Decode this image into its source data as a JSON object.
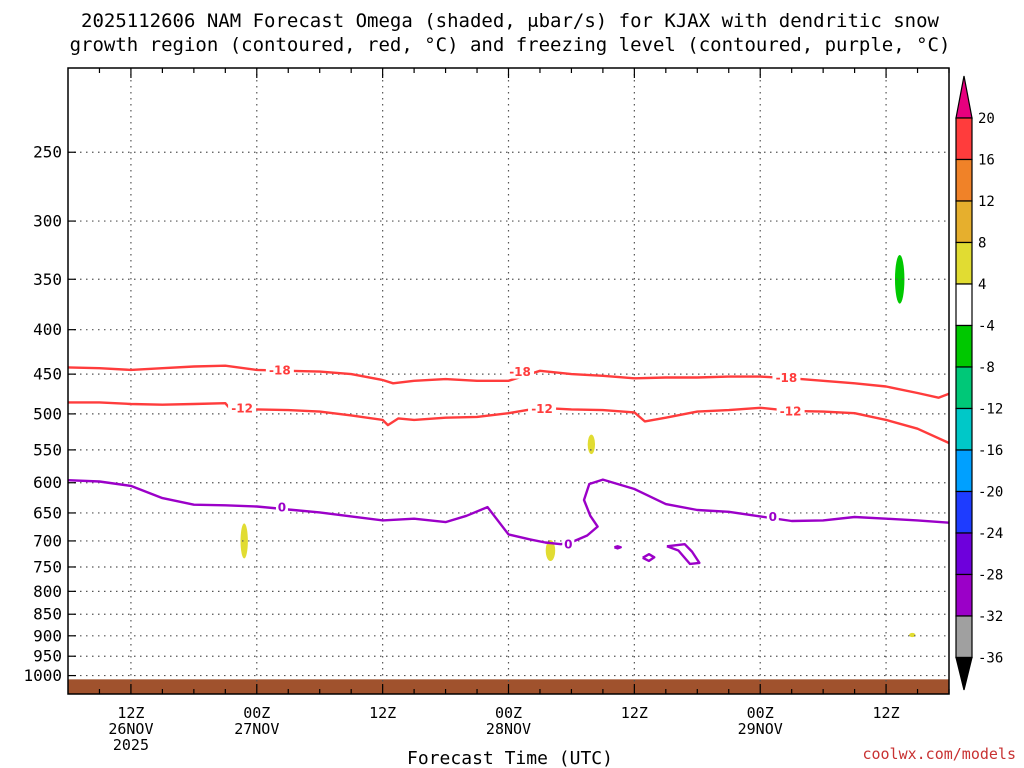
{
  "chart_data": {
    "type": "line",
    "title_lines": [
      "2025112606 NAM Forecast Omega (shaded, μbar/s) for KJAX with dendritic snow",
      "growth region (contoured, red, °C) and freezing level (contoured, purple, °C)"
    ],
    "xlabel": "Forecast Time (UTC)",
    "ylabel": "",
    "credit": "coolwx.com/models",
    "xlim": [
      6,
      90
    ],
    "ylim": [
      1050,
      200
    ],
    "y_ticks": [
      250,
      300,
      350,
      400,
      450,
      500,
      550,
      600,
      650,
      700,
      750,
      800,
      850,
      900,
      950,
      1000
    ],
    "x_ticks": [
      {
        "hour": 12,
        "lines": [
          "12Z",
          "26NOV",
          "2025"
        ]
      },
      {
        "hour": 24,
        "lines": [
          "00Z",
          "27NOV"
        ]
      },
      {
        "hour": 36,
        "lines": [
          "12Z"
        ]
      },
      {
        "hour": 48,
        "lines": [
          "00Z",
          "28NOV"
        ]
      },
      {
        "hour": 60,
        "lines": [
          "12Z"
        ]
      },
      {
        "hour": 72,
        "lines": [
          "00Z",
          "29NOV"
        ]
      },
      {
        "hour": 84,
        "lines": [
          "12Z"
        ]
      }
    ],
    "series": [
      {
        "name": "-18",
        "color": "#ff3c3c",
        "x": [
          6,
          9,
          12,
          15,
          18,
          21,
          24,
          27,
          30,
          33,
          36,
          37,
          39,
          42,
          45,
          48,
          51,
          54,
          57,
          60,
          63,
          66,
          69,
          72,
          75,
          78,
          81,
          84,
          87,
          89,
          90
        ],
        "y": [
          442,
          443,
          445,
          443,
          441,
          440,
          445,
          446,
          447,
          450,
          457,
          461,
          458,
          456,
          458,
          458,
          446,
          450,
          452,
          455,
          454,
          454,
          453,
          453,
          455,
          458,
          461,
          465,
          473,
          479,
          474
        ]
      },
      {
        "name": "-12",
        "color": "#ff3c3c",
        "x": [
          6,
          9,
          12,
          15,
          18,
          21,
          21.5,
          24,
          27,
          30,
          33,
          36,
          36.5,
          37.5,
          39,
          42,
          45,
          48,
          51,
          54,
          57,
          60,
          61,
          63,
          66,
          69,
          72,
          75,
          78,
          81,
          84,
          87,
          90
        ],
        "y": [
          485,
          485,
          487,
          488,
          487,
          486,
          494,
          494,
          495,
          497,
          502,
          508,
          515,
          506,
          508,
          505,
          504,
          499,
          492,
          494,
          495,
          498,
          510,
          505,
          497,
          495,
          492,
          496,
          497,
          499,
          508,
          520,
          540
        ]
      },
      {
        "name": "0",
        "color": "#9b00c8",
        "x": [
          6,
          9,
          12,
          15,
          18,
          21,
          24,
          27,
          30,
          33,
          36,
          39,
          42,
          44,
          46,
          48,
          50,
          51.5,
          53,
          54.3,
          55.5,
          56.5,
          55.8,
          55.2,
          55.7,
          57,
          60,
          63,
          66,
          69,
          72,
          75,
          78,
          81,
          84,
          87,
          90
        ],
        "y": [
          596,
          598,
          605,
          625,
          636,
          637,
          639,
          644,
          649,
          656,
          663,
          660,
          666,
          655,
          640,
          688,
          697,
          703,
          706,
          700,
          690,
          674,
          655,
          628,
          602,
          595,
          610,
          635,
          645,
          648,
          656,
          664,
          663,
          657,
          660,
          663,
          667
        ]
      }
    ],
    "closed_contours": [
      {
        "name": "0",
        "color": "#9b00c8",
        "x": [
          58.1,
          58.4,
          58.7,
          58.4,
          58.1
        ],
        "y": [
          712,
          710,
          712,
          714,
          712
        ]
      },
      {
        "name": "0",
        "color": "#9b00c8",
        "x": [
          60.8,
          61.4,
          61.9,
          61.4,
          60.8
        ],
        "y": [
          732,
          725,
          731,
          738,
          732
        ]
      },
      {
        "name": "0",
        "color": "#9b00c8",
        "x": [
          63.1,
          64.8,
          65.5,
          66.2,
          65.3,
          64.2,
          63.1
        ],
        "y": [
          710,
          706,
          720,
          742,
          744,
          718,
          710
        ]
      }
    ],
    "contour_labels": [
      {
        "text": "-18",
        "color": "#ff3c3c",
        "x": 26.2,
        "y": 445
      },
      {
        "text": "-18",
        "color": "#ff3c3c",
        "x": 49.1,
        "y": 447
      },
      {
        "text": "-18",
        "color": "#ff3c3c",
        "x": 74.5,
        "y": 454
      },
      {
        "text": "-12",
        "color": "#ff3c3c",
        "x": 22.6,
        "y": 492
      },
      {
        "text": "-12",
        "color": "#ff3c3c",
        "x": 51.2,
        "y": 493
      },
      {
        "text": "-12",
        "color": "#ff3c3c",
        "x": 74.9,
        "y": 496
      },
      {
        "text": "0",
        "color": "#9b00c8",
        "x": 26.4,
        "y": 640
      },
      {
        "text": "0",
        "color": "#9b00c8",
        "x": 53.7,
        "y": 706
      },
      {
        "text": "0",
        "color": "#9b00c8",
        "x": 73.2,
        "y": 656
      }
    ],
    "omega_shaded": [
      {
        "x": 22.8,
        "y": 700,
        "dx": 0.35,
        "dy": 65,
        "color": "#e1dc32"
      },
      {
        "x": 52.0,
        "y": 718,
        "dx": 0.45,
        "dy": 40,
        "color": "#e1dc32"
      },
      {
        "x": 55.9,
        "y": 542,
        "dx": 0.35,
        "dy": 28,
        "color": "#e1dc32"
      },
      {
        "x": 85.3,
        "y": 350,
        "dx": 0.45,
        "dy": 45,
        "color": "#00c800"
      },
      {
        "x": 86.5,
        "y": 898,
        "dx": 0.3,
        "dy": 10,
        "color": "#e1dc32"
      }
    ],
    "surface": {
      "color": "#a0522d",
      "pressure": 1010
    },
    "colorbar": {
      "levels": [
        20,
        16,
        12,
        8,
        4,
        -4,
        -8,
        -12,
        -16,
        -20,
        -24,
        -28,
        -32,
        -36
      ],
      "colors": [
        "#ff3c3c",
        "#f08228",
        "#e6af2d",
        "#e1dc32",
        "#ffffff",
        "#00c800",
        "#00c878",
        "#00c8c8",
        "#00a0ff",
        "#1e3cff",
        "#6e00dc",
        "#9b00c8",
        "#a0a0a0"
      ],
      "top_arrow_color": "#e6007e",
      "bottom_arrow_color": "#000000"
    }
  }
}
